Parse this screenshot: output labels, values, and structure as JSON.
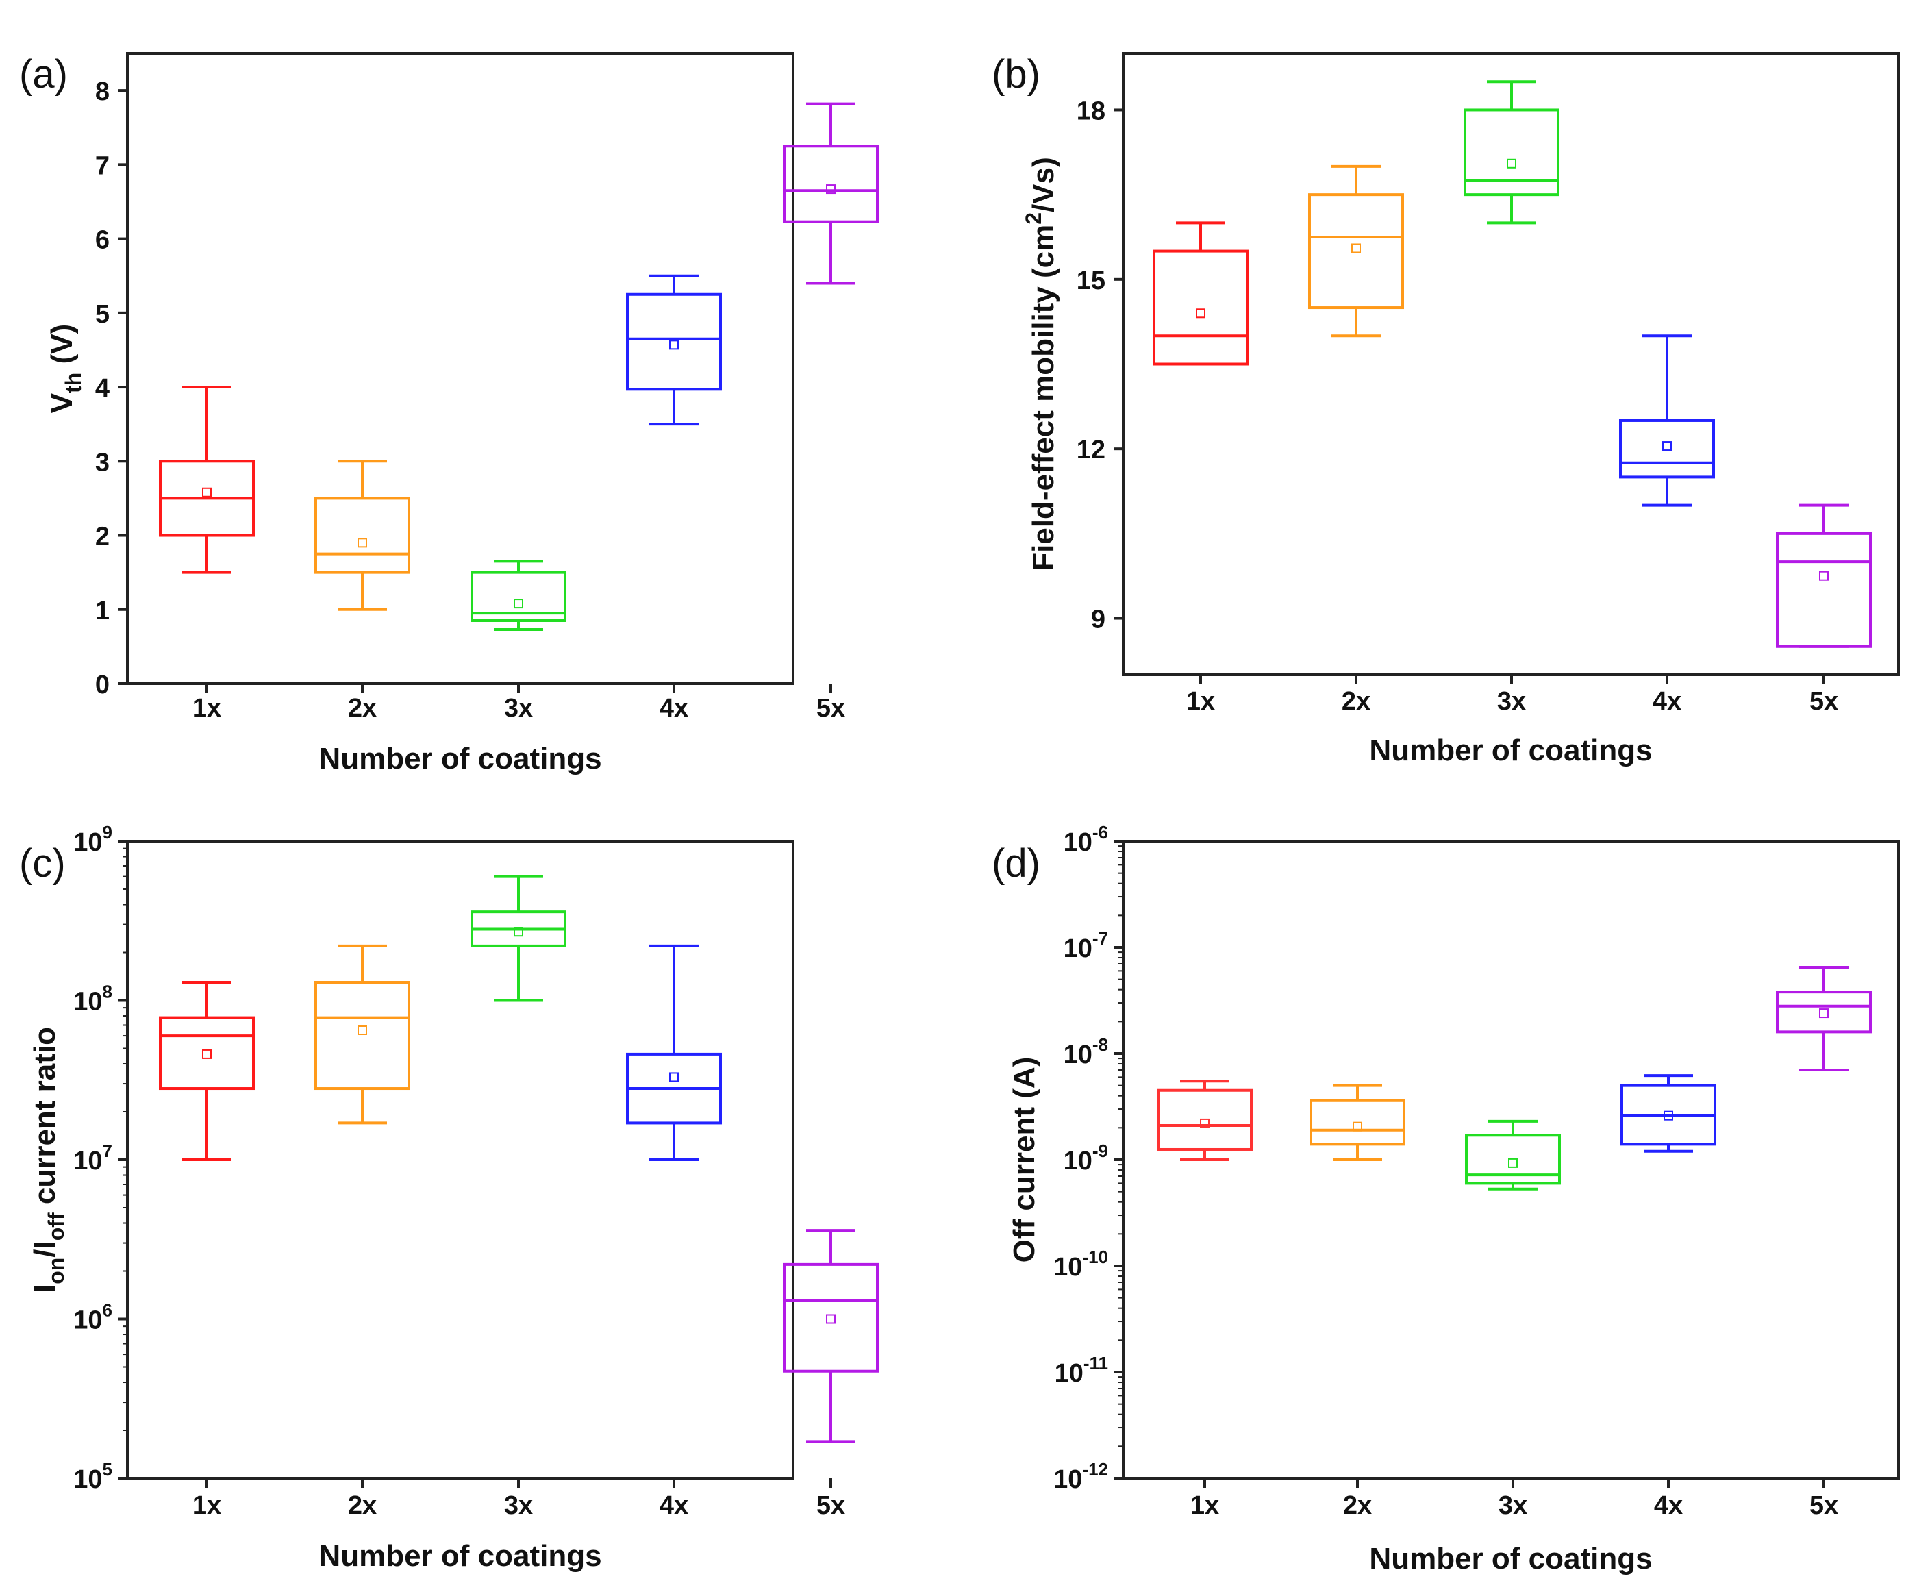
{
  "chart_data": [
    {
      "panel": "(a)",
      "type": "box",
      "scale": "linear",
      "title": "",
      "xlabel": "Number of coatings",
      "ylabel": {
        "main": "V",
        "sub": "th",
        "rest": " (V)"
      },
      "ylim": [
        0,
        8.5
      ],
      "yticks": [
        0,
        1,
        2,
        3,
        4,
        5,
        6,
        7,
        8
      ],
      "ytick_labels": [
        "0",
        "1",
        "2",
        "3",
        "4",
        "5",
        "6",
        "7",
        "8"
      ],
      "categories": [
        "1x",
        "2x",
        "3x",
        "4x",
        "5x"
      ],
      "colors": [
        "#ff1a1a",
        "#ff9a1a",
        "#22dd22",
        "#2222ff",
        "#b31ae6"
      ],
      "boxes": [
        {
          "whisker_low": 1.5,
          "q1": 2.0,
          "median": 2.5,
          "q3": 3.0,
          "whisker_high": 4.0,
          "mean": 2.58
        },
        {
          "whisker_low": 1.0,
          "q1": 1.5,
          "median": 1.75,
          "q3": 2.5,
          "whisker_high": 3.0,
          "mean": 1.9
        },
        {
          "whisker_low": 0.73,
          "q1": 0.85,
          "median": 0.95,
          "q3": 1.5,
          "whisker_high": 1.65,
          "mean": 1.08
        },
        {
          "whisker_low": 3.5,
          "q1": 3.97,
          "median": 4.65,
          "q3": 5.25,
          "whisker_high": 5.5,
          "mean": 4.57
        },
        {
          "whisker_low": 5.4,
          "q1": 6.23,
          "median": 6.65,
          "q3": 7.25,
          "whisker_high": 7.82,
          "mean": 6.67
        }
      ]
    },
    {
      "panel": "(b)",
      "type": "box",
      "scale": "linear",
      "title": "",
      "xlabel": "Number of coatings",
      "ylabel": {
        "main": "Field-effect mobility (cm",
        "sup": "2",
        "rest": "/Vs)"
      },
      "ylim": [
        8,
        19
      ],
      "yticks": [
        9,
        12,
        15,
        18
      ],
      "ytick_labels": [
        "9",
        "12",
        "15",
        "18"
      ],
      "categories": [
        "1x",
        "2x",
        "3x",
        "4x",
        "5x"
      ],
      "colors": [
        "#ff1a1a",
        "#ff9a1a",
        "#22dd22",
        "#2222ff",
        "#b31ae6"
      ],
      "boxes": [
        {
          "whisker_low": 13.5,
          "q1": 13.5,
          "median": 14.0,
          "q3": 15.5,
          "whisker_high": 16.0,
          "mean": 14.4
        },
        {
          "whisker_low": 14.0,
          "q1": 14.5,
          "median": 15.75,
          "q3": 16.5,
          "whisker_high": 17.0,
          "mean": 15.55
        },
        {
          "whisker_low": 16.0,
          "q1": 16.5,
          "median": 16.75,
          "q3": 18.0,
          "whisker_high": 18.5,
          "mean": 17.05
        },
        {
          "whisker_low": 11.0,
          "q1": 11.5,
          "median": 11.75,
          "q3": 12.5,
          "whisker_high": 14.0,
          "mean": 12.05
        },
        {
          "whisker_low": 8.5,
          "q1": 8.5,
          "median": 10.0,
          "q3": 10.5,
          "whisker_high": 11.0,
          "mean": 9.75
        }
      ]
    },
    {
      "panel": "(c)",
      "type": "box",
      "scale": "log",
      "title": "",
      "xlabel": "Number of coatings",
      "ylabel": {
        "main": "I",
        "sub": "on",
        "mid": "/I",
        "sub2": "off",
        "rest": " current ratio"
      },
      "ylim_exp": [
        5,
        9
      ],
      "yticks_exp": [
        5,
        6,
        7,
        8,
        9
      ],
      "ytick_base": "10",
      "ytick_exponents": [
        "5",
        "6",
        "7",
        "8",
        "9"
      ],
      "categories": [
        "1x",
        "2x",
        "3x",
        "4x",
        "5x"
      ],
      "colors": [
        "#ff1a1a",
        "#ff9a1a",
        "#22dd22",
        "#2222ff",
        "#b31ae6"
      ],
      "boxes": [
        {
          "whisker_low": 10000000.0,
          "q1": 28000000.0,
          "median": 60000000.0,
          "q3": 78000000.0,
          "whisker_high": 130000000.0,
          "mean": 46000000.0
        },
        {
          "whisker_low": 17000000.0,
          "q1": 28000000.0,
          "median": 78000000.0,
          "q3": 130000000.0,
          "whisker_high": 220000000.0,
          "mean": 65000000.0
        },
        {
          "whisker_low": 100000000.0,
          "q1": 220000000.0,
          "median": 280000000.0,
          "q3": 360000000.0,
          "whisker_high": 600000000.0,
          "mean": 270000000.0
        },
        {
          "whisker_low": 10000000.0,
          "q1": 17000000.0,
          "median": 28000000.0,
          "q3": 46000000.0,
          "whisker_high": 220000000.0,
          "mean": 33000000.0
        },
        {
          "whisker_low": 170000.0,
          "q1": 470000.0,
          "median": 1300000.0,
          "q3": 2200000.0,
          "whisker_high": 3600000.0,
          "mean": 1000000.0
        }
      ]
    },
    {
      "panel": "(d)",
      "type": "box",
      "scale": "log",
      "title": "",
      "xlabel": "Number of coatings",
      "ylabel": {
        "main": "Off current (A)"
      },
      "ylim_exp": [
        -12,
        -6
      ],
      "yticks_exp": [
        -12,
        -11,
        -10,
        -9,
        -8,
        -7,
        -6
      ],
      "ytick_base": "10",
      "ytick_exponents": [
        "-12",
        "-11",
        "-10",
        "-9",
        "-8",
        "-7",
        "-6"
      ],
      "categories": [
        "1x",
        "2x",
        "3x",
        "4x",
        "5x"
      ],
      "colors": [
        "#ff3333",
        "#ff9a1a",
        "#22dd22",
        "#2222ff",
        "#b31ae6"
      ],
      "boxes": [
        {
          "whisker_low": 1e-09,
          "q1": 1.25e-09,
          "median": 2.1e-09,
          "q3": 4.5e-09,
          "whisker_high": 5.5e-09,
          "mean": 2.2e-09
        },
        {
          "whisker_low": 1e-09,
          "q1": 1.4e-09,
          "median": 1.9e-09,
          "q3": 3.6e-09,
          "whisker_high": 5e-09,
          "mean": 2.05e-09
        },
        {
          "whisker_low": 5.3e-10,
          "q1": 6e-10,
          "median": 7.2e-10,
          "q3": 1.7e-09,
          "whisker_high": 2.3e-09,
          "mean": 9.3e-10
        },
        {
          "whisker_low": 1.2e-09,
          "q1": 1.4e-09,
          "median": 2.6e-09,
          "q3": 5e-09,
          "whisker_high": 6.2e-09,
          "mean": 2.6e-09
        },
        {
          "whisker_low": 7e-09,
          "q1": 1.6e-08,
          "median": 2.8e-08,
          "q3": 3.8e-08,
          "whisker_high": 6.5e-08,
          "mean": 2.4e-08
        }
      ]
    }
  ]
}
